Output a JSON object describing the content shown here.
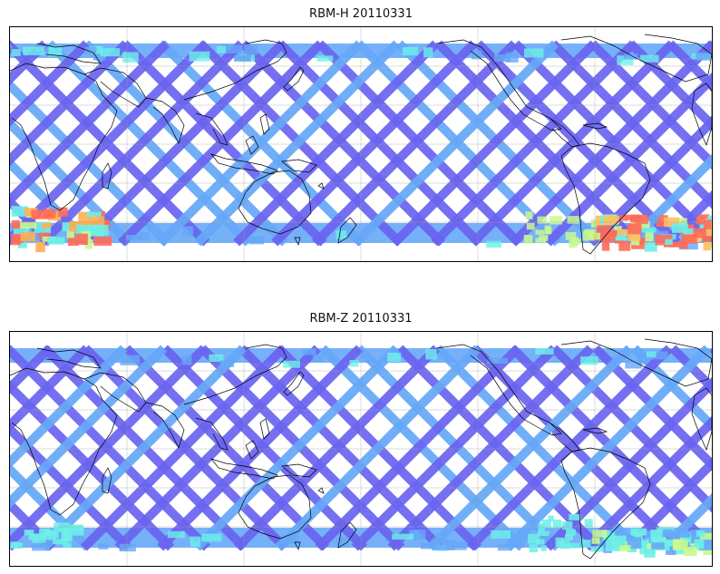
{
  "figure": {
    "panels": [
      {
        "id": "rbm-h",
        "title": "RBM-H 20110331",
        "colors": {
          "low": "#6a64f0",
          "mid_low": "#66a8f8",
          "mid": "#6ef0e8",
          "mid_high": "#c8f890",
          "high": "#ff6a58"
        },
        "high_regions": [
          "south-atlantic",
          "south-indian"
        ]
      },
      {
        "id": "rbm-z",
        "title": "RBM-Z 20110331",
        "colors": {
          "low": "#6a64f0",
          "mid_low": "#66a8f8",
          "mid": "#6ef0e8",
          "mid_high": "#c8f890",
          "high": "#ffe060"
        },
        "high_regions": [
          "south-atlantic"
        ]
      }
    ],
    "colormap": "jet"
  }
}
